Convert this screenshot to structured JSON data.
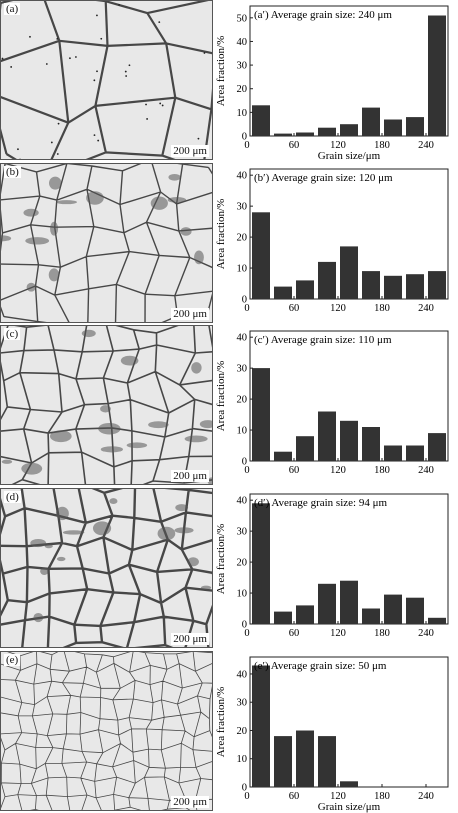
{
  "panels": [
    {
      "micro_label": "(a)",
      "scale_bar": "200 μm"
    },
    {
      "micro_label": "(b)",
      "scale_bar": "200 μm"
    },
    {
      "micro_label": "(c)",
      "scale_bar": "200 μm"
    },
    {
      "micro_label": "(d)",
      "scale_bar": "200 μm"
    },
    {
      "micro_label": "(e)",
      "scale_bar": "200 μm"
    }
  ],
  "chart_data": [
    {
      "type": "bar",
      "panel_label": "(a′)",
      "title": "Average grain size: 240 μm",
      "xlabel": "Grain size/μm",
      "ylabel": "Area fraction/%",
      "x": [
        15,
        45,
        75,
        105,
        135,
        165,
        195,
        225,
        255
      ],
      "values": [
        13,
        1,
        1.5,
        3.5,
        5,
        12,
        7,
        8,
        51
      ],
      "ylim": [
        0,
        55
      ],
      "yticks": [
        0,
        10,
        20,
        30,
        40,
        50
      ],
      "xticks": [
        60,
        120,
        180,
        240
      ]
    },
    {
      "type": "bar",
      "panel_label": "(b′)",
      "title": "Average grain size: 120 μm",
      "xlabel": "",
      "ylabel": "Area fraction/%",
      "x": [
        15,
        45,
        75,
        105,
        135,
        165,
        195,
        225,
        255
      ],
      "values": [
        28,
        4,
        6,
        12,
        17,
        9,
        7.5,
        8,
        9
      ],
      "ylim": [
        0,
        42
      ],
      "yticks": [
        0,
        10,
        20,
        30,
        40
      ],
      "xticks": [
        60,
        120,
        180,
        240
      ]
    },
    {
      "type": "bar",
      "panel_label": "(c′)",
      "title": "Average grain size: 110 μm",
      "xlabel": "",
      "ylabel": "Area fraction/%",
      "x": [
        15,
        45,
        75,
        105,
        135,
        165,
        195,
        225,
        255
      ],
      "values": [
        30,
        3,
        8,
        16,
        13,
        11,
        5,
        5,
        9
      ],
      "ylim": [
        0,
        42
      ],
      "yticks": [
        0,
        10,
        20,
        30,
        40
      ],
      "xticks": [
        60,
        120,
        180,
        240
      ]
    },
    {
      "type": "bar",
      "panel_label": "(d′)",
      "title": "Average grain size: 94 μm",
      "xlabel": "",
      "ylabel": "Area fraction/%",
      "x": [
        15,
        45,
        75,
        105,
        135,
        165,
        195,
        225,
        255
      ],
      "values": [
        39,
        4,
        6,
        13,
        14,
        5,
        9.5,
        8.5,
        2
      ],
      "ylim": [
        0,
        42
      ],
      "yticks": [
        0,
        10,
        20,
        30,
        40
      ],
      "xticks": [
        60,
        120,
        180,
        240
      ]
    },
    {
      "type": "bar",
      "panel_label": "(e′)",
      "title": "Average grain size: 50 μm",
      "xlabel": "Grain size/μm",
      "ylabel": "Area fraction/%",
      "x": [
        15,
        45,
        75,
        105,
        135,
        165,
        195,
        225,
        255
      ],
      "values": [
        43,
        18,
        20,
        18,
        2,
        0,
        0,
        0,
        0
      ],
      "ylim": [
        0,
        46
      ],
      "yticks": [
        0,
        10,
        20,
        30,
        40
      ],
      "xticks": [
        60,
        120,
        180,
        240
      ]
    }
  ],
  "colors": {
    "bar": "#333333",
    "grain_boundary": "#2a2a2a",
    "matrix": "#e8e8e8"
  }
}
